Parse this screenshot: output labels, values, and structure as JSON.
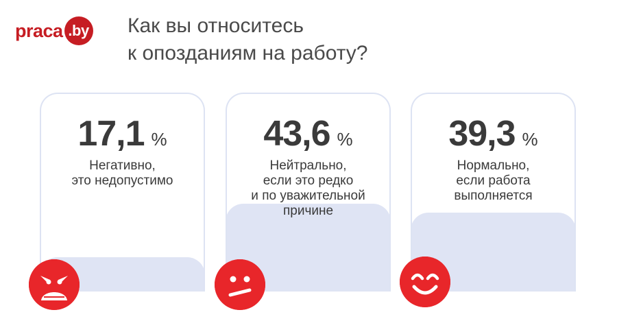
{
  "header": {
    "logo_main": "praca",
    "logo_suffix": ".by",
    "title_lines": [
      "Как вы относитесь",
      "к опозданиям на работу?"
    ]
  },
  "colors": {
    "brand_red": "#c61d23",
    "face_red": "#e8262a",
    "card_border": "#dde3f3",
    "card_fill": "#dfe4f4",
    "text": "#3a3a3a"
  },
  "cards": [
    {
      "value": "17,1",
      "unit": "%",
      "label_lines": [
        "Негативно,",
        "это недопустимо"
      ],
      "icon": "angry-face-icon"
    },
    {
      "value": "43,6",
      "unit": "%",
      "label_lines": [
        "Нейтрально,",
        "если это редко",
        "и по уважительной",
        "причине"
      ],
      "icon": "neutral-face-icon"
    },
    {
      "value": "39,3",
      "unit": "%",
      "label_lines": [
        "Нормально,",
        "если работа",
        "выполняется"
      ],
      "icon": "happy-face-icon"
    }
  ],
  "chart_data": {
    "type": "bar",
    "title": "Как вы относитесь к опозданиям на работу?",
    "categories": [
      "Негативно, это недопустимо",
      "Нейтрально, если это редко и по уважительной причине",
      "Нормально, если работа выполняется"
    ],
    "values": [
      17.1,
      43.6,
      39.3
    ],
    "unit": "%",
    "xlabel": "",
    "ylabel": "",
    "ylim": [
      0,
      100
    ],
    "grid": false,
    "legend": "none"
  }
}
